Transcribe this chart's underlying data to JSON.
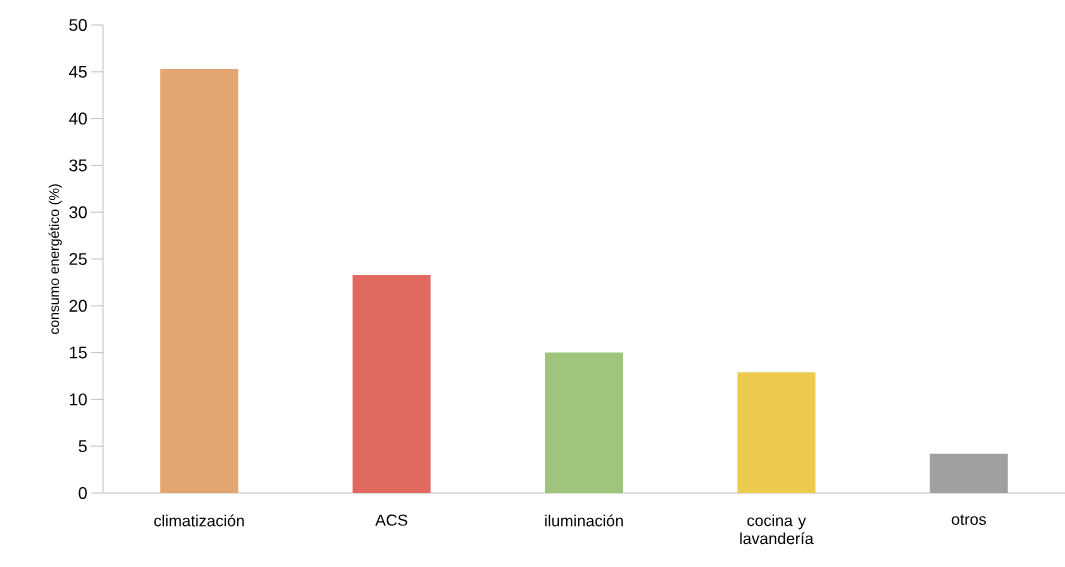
{
  "chart_data": {
    "type": "bar",
    "ylabel": "consumo energético (%)",
    "categories": [
      "climatización",
      "ACS",
      "iluminación",
      "cocina y lavandería",
      "otros"
    ],
    "values": [
      45.3,
      23.3,
      15.0,
      12.9,
      4.2
    ],
    "colors": [
      "#e3a672",
      "#e06a5f",
      "#9fc57c",
      "#ecca4b",
      "#a0a0a0"
    ],
    "ylim": [
      0,
      50
    ],
    "yticks": [
      0,
      5,
      10,
      15,
      20,
      25,
      30,
      35,
      40,
      45,
      50
    ],
    "grid": false
  }
}
